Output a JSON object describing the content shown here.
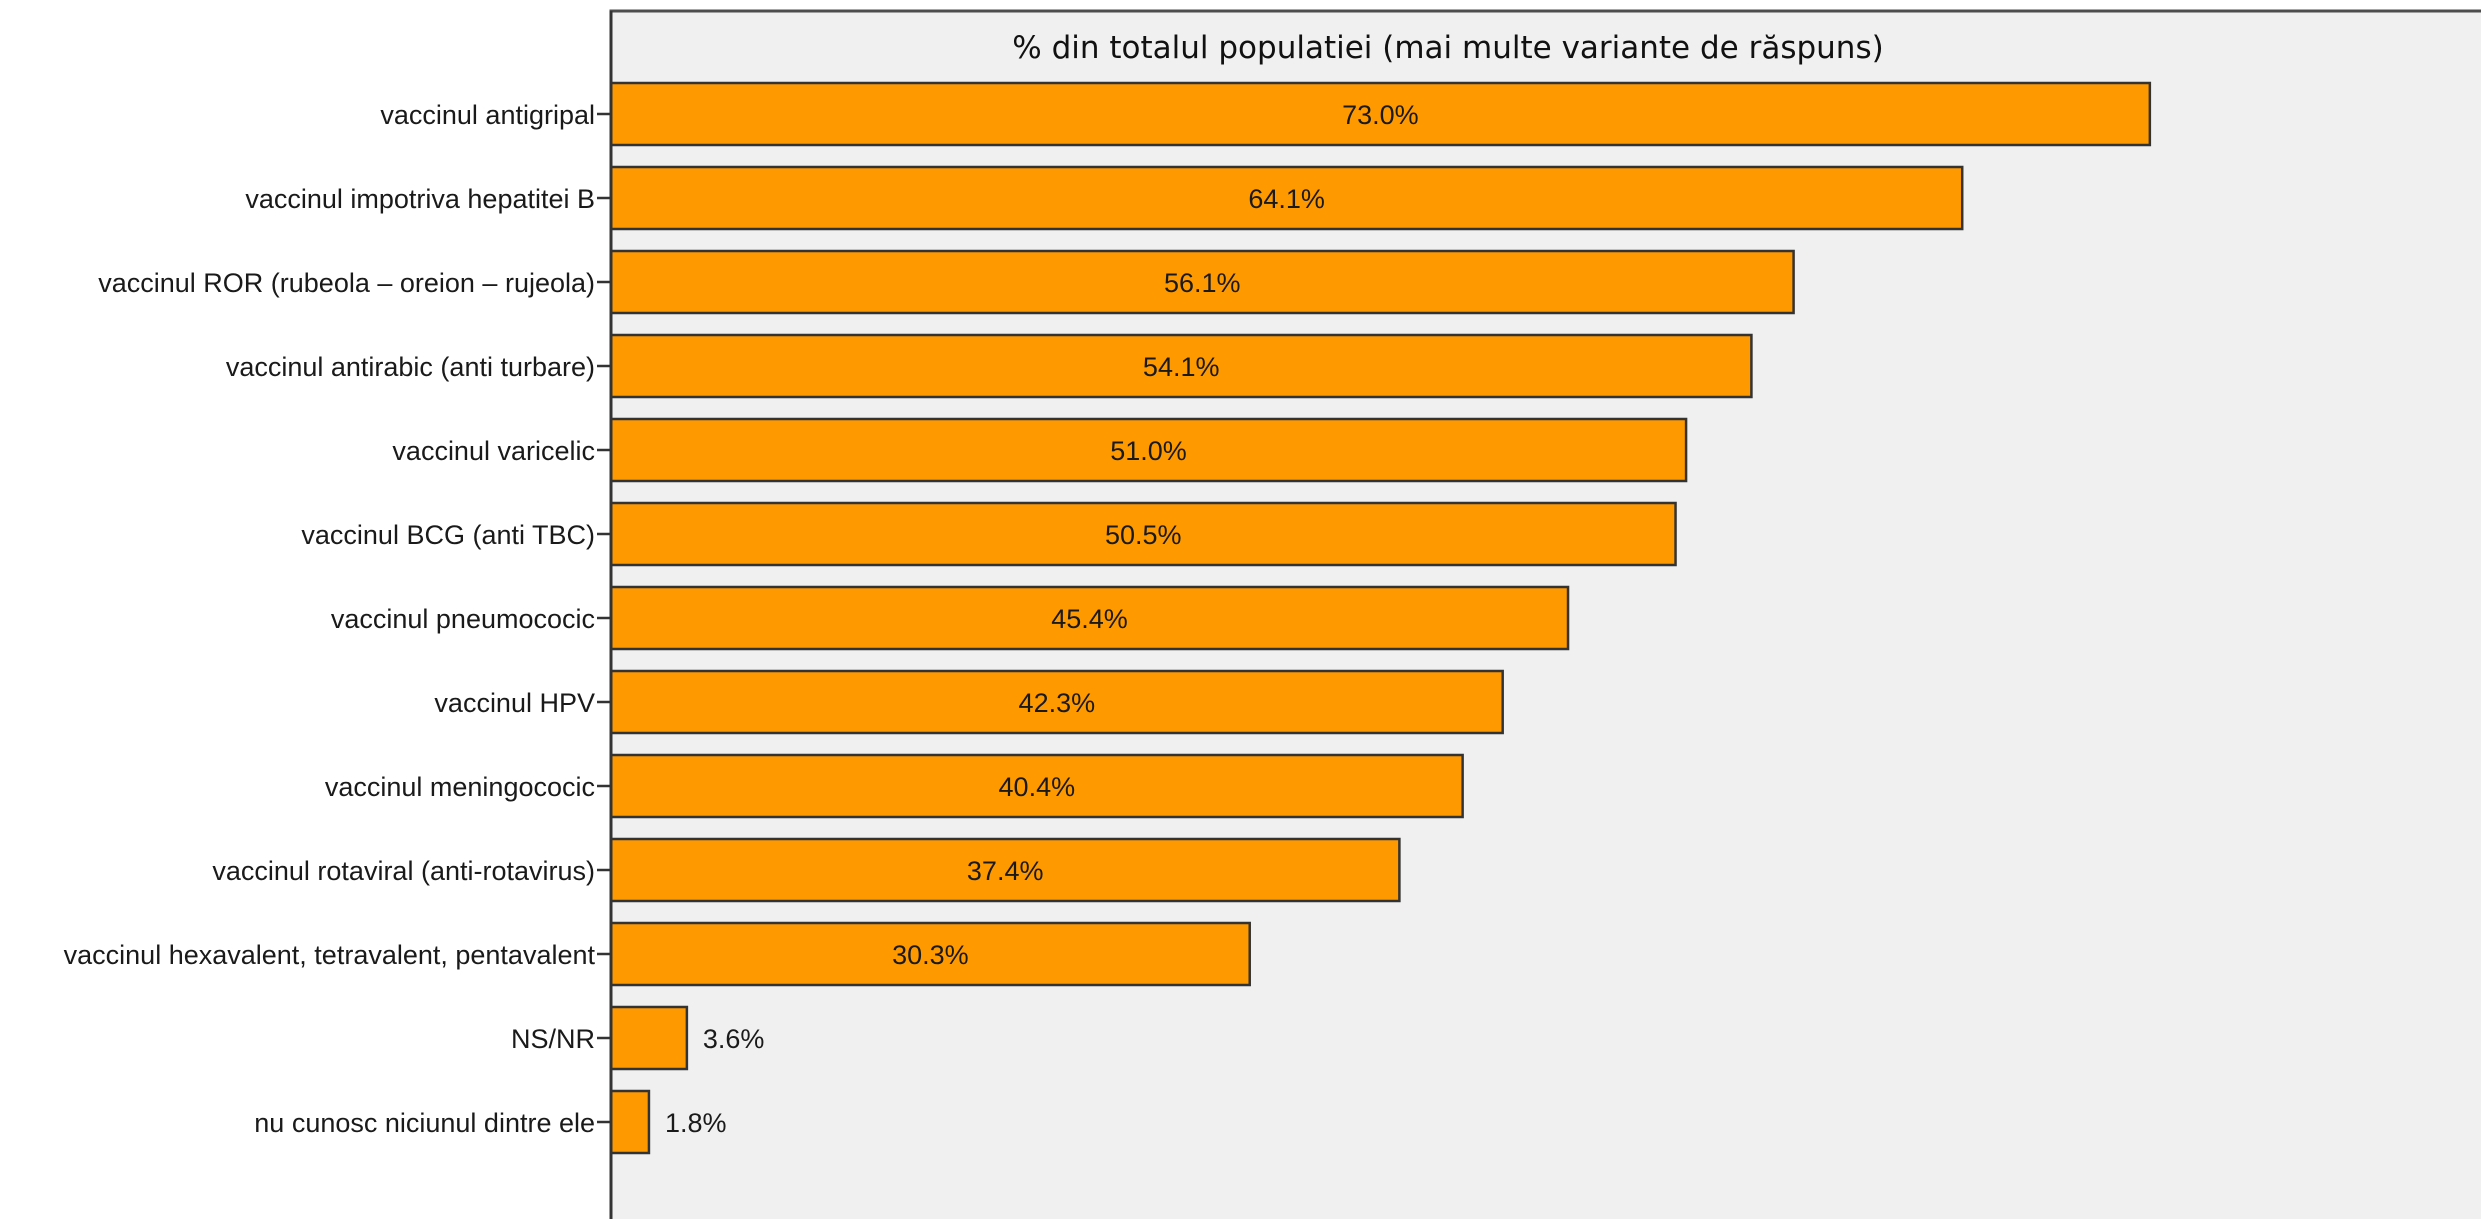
{
  "chart_data": {
    "type": "bar",
    "orientation": "horizontal",
    "title": "% din totalul populatiei (mai multe variante de răspuns)",
    "xlabel": "",
    "ylabel": "",
    "xlim": [
      0,
      100
    ],
    "grid": false,
    "categories": [
      "vaccinul antigripal",
      "vaccinul impotriva hepatitei B",
      "vaccinul ROR (rubeola – oreion – rujeola)",
      "vaccinul antirabic (anti turbare)",
      "vaccinul varicelic",
      "vaccinul BCG (anti TBC)",
      "vaccinul pneumococic",
      "vaccinul HPV",
      "vaccinul meningococic",
      "vaccinul rotaviral (anti-rotavirus)",
      "vaccinul hexavalent, tetravalent, pentavalent",
      "NS/NR",
      "nu cunosc niciunul dintre ele"
    ],
    "values": [
      73.0,
      64.1,
      56.1,
      54.1,
      51.0,
      50.5,
      45.4,
      42.3,
      40.4,
      37.4,
      30.3,
      3.6,
      1.8
    ],
    "value_labels": [
      "73.0%",
      "64.1%",
      "56.1%",
      "54.1%",
      "51.0%",
      "50.5%",
      "45.4%",
      "42.3%",
      "40.4%",
      "37.4%",
      "30.3%",
      "3.6%",
      "1.8%"
    ],
    "bar_color": "#ff9900",
    "bar_edge_color": "#333333",
    "plot_background": "#f0f0f0"
  }
}
